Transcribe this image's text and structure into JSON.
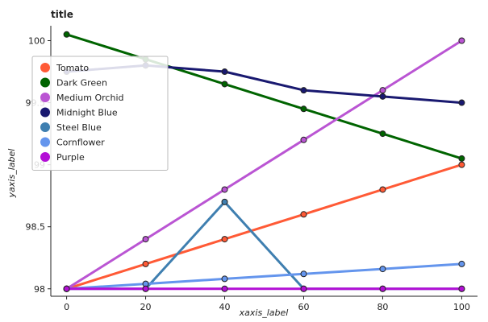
{
  "chart_data": {
    "type": "line",
    "title": "title",
    "xlabel": "xaxis_label",
    "ylabel": "yaxis_label",
    "x": [
      0,
      20,
      40,
      60,
      80,
      100
    ],
    "xlim": [
      -4,
      104
    ],
    "ylim": [
      97.94,
      100.12
    ],
    "x_ticks": [
      "0",
      "20",
      "40",
      "60",
      "80",
      "100"
    ],
    "y_ticks": [
      "98",
      "98.5",
      "99",
      "99.5",
      "100"
    ],
    "y_tick_values": [
      98,
      98.5,
      99,
      99.5,
      100
    ],
    "grid": false,
    "legend_position": "left",
    "series": [
      {
        "name": "Tomato",
        "color": "#ff5a36",
        "values": [
          98.0,
          98.2,
          98.4,
          98.6,
          98.8,
          99.0
        ]
      },
      {
        "name": "Dark Green",
        "color": "#006400",
        "values": [
          100.05,
          99.85,
          99.65,
          99.45,
          99.25,
          99.05
        ]
      },
      {
        "name": "Medium Orchid",
        "color": "#ba55d3",
        "values": [
          98.0,
          98.4,
          98.8,
          99.2,
          99.6,
          100.0
        ]
      },
      {
        "name": "Midnight Blue",
        "color": "#191970",
        "values": [
          99.75,
          99.8,
          99.75,
          99.6,
          99.55,
          99.5
        ]
      },
      {
        "name": "Steel Blue",
        "color": "#3f7fb0",
        "values": [
          98.0,
          98.0,
          98.7,
          98.0,
          98.0,
          98.0
        ]
      },
      {
        "name": "Cornflower",
        "color": "#6495ed",
        "values": [
          98.0,
          98.04,
          98.08,
          98.12,
          98.16,
          98.2
        ]
      },
      {
        "name": "Purple",
        "color": "#b30fd6",
        "values": [
          98.0,
          98.0,
          98.0,
          98.0,
          98.0,
          98.0
        ]
      }
    ]
  }
}
